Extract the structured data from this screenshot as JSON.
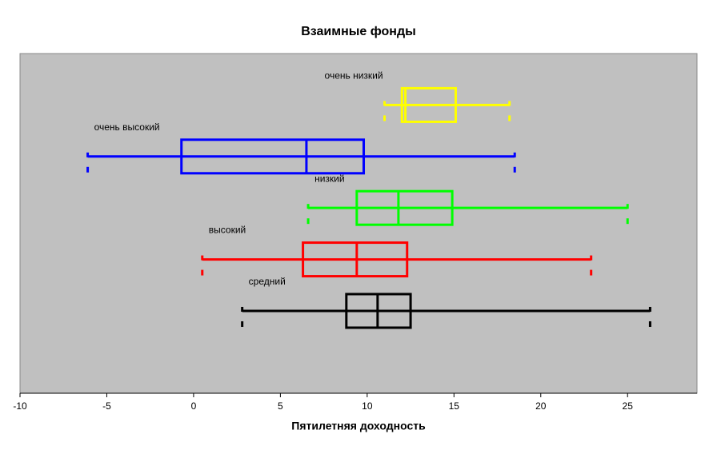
{
  "chart_data": {
    "type": "boxplot",
    "title": "Взаимные фонды",
    "x_label": "Пятилетняя доходность",
    "xlim": [
      -10,
      29
    ],
    "xticks": [
      -10,
      -5,
      0,
      5,
      10,
      15,
      20,
      25
    ],
    "series": [
      {
        "name": "очень низкий",
        "color": "#ffff00",
        "min": 11.0,
        "q1": 12.0,
        "median": 12.2,
        "q3": 15.1,
        "max": 18.2
      },
      {
        "name": "очень высокий",
        "color": "#0000ff",
        "min": -6.1,
        "q1": -0.7,
        "median": 6.5,
        "q3": 9.8,
        "max": 18.5
      },
      {
        "name": "низкий",
        "color": "#00ff00",
        "min": 6.6,
        "q1": 9.4,
        "median": 11.8,
        "q3": 14.9,
        "max": 25.0
      },
      {
        "name": "высокий",
        "color": "#ff0000",
        "min": 0.5,
        "q1": 6.3,
        "median": 9.4,
        "q3": 12.3,
        "max": 22.9
      },
      {
        "name": "средний",
        "color": "#000000",
        "min": 2.8,
        "q1": 8.8,
        "median": 10.6,
        "q3": 12.5,
        "max": 26.3
      }
    ]
  }
}
